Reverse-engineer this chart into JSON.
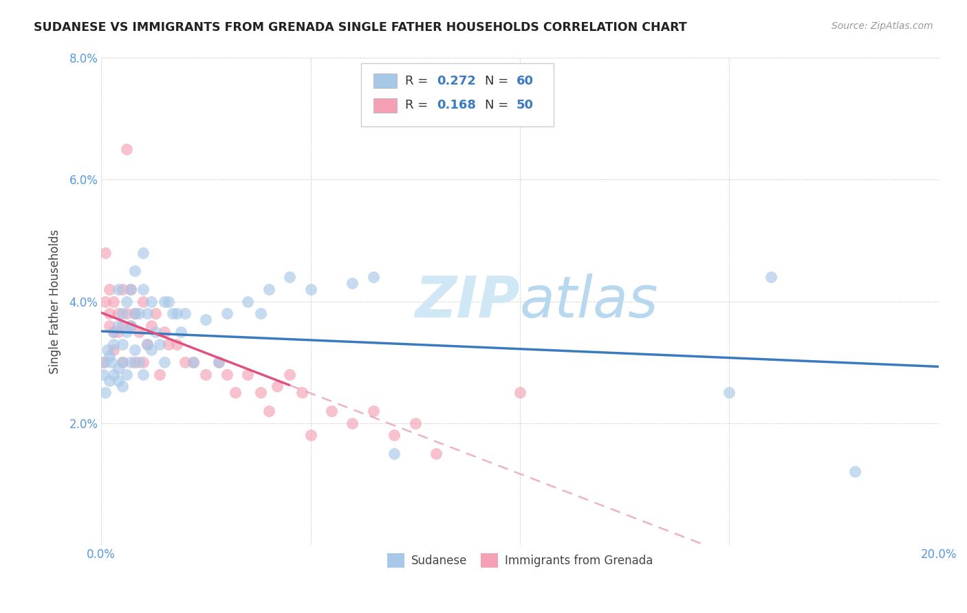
{
  "title": "SUDANESE VS IMMIGRANTS FROM GRENADA SINGLE FATHER HOUSEHOLDS CORRELATION CHART",
  "source": "Source: ZipAtlas.com",
  "ylabel": "Single Father Households",
  "xlim": [
    0,
    0.2
  ],
  "ylim": [
    0,
    0.08
  ],
  "xtick_labels": [
    "0.0%",
    "",
    "",
    "",
    "20.0%"
  ],
  "ytick_labels": [
    "",
    "2.0%",
    "4.0%",
    "6.0%",
    "8.0%"
  ],
  "blue_color": "#a8c8e8",
  "pink_color": "#f4a0b5",
  "blue_line_color": "#3a7abf",
  "pink_line_color": "#e05080",
  "pink_dash_color": "#e8a0b0",
  "watermark_color": "#d0e8f5",
  "sudanese_x": [
    0.0005,
    0.001,
    0.001,
    0.0015,
    0.002,
    0.002,
    0.0025,
    0.003,
    0.003,
    0.003,
    0.004,
    0.004,
    0.004,
    0.004,
    0.005,
    0.005,
    0.005,
    0.005,
    0.006,
    0.006,
    0.006,
    0.007,
    0.007,
    0.007,
    0.008,
    0.008,
    0.008,
    0.009,
    0.009,
    0.01,
    0.01,
    0.01,
    0.011,
    0.011,
    0.012,
    0.012,
    0.013,
    0.014,
    0.015,
    0.015,
    0.016,
    0.017,
    0.018,
    0.019,
    0.02,
    0.022,
    0.025,
    0.028,
    0.03,
    0.035,
    0.038,
    0.04,
    0.045,
    0.05,
    0.06,
    0.065,
    0.07,
    0.15,
    0.16,
    0.18
  ],
  "sudanese_y": [
    0.028,
    0.03,
    0.025,
    0.032,
    0.027,
    0.031,
    0.03,
    0.033,
    0.028,
    0.035,
    0.042,
    0.036,
    0.029,
    0.027,
    0.038,
    0.033,
    0.03,
    0.026,
    0.04,
    0.035,
    0.028,
    0.042,
    0.036,
    0.03,
    0.045,
    0.038,
    0.032,
    0.038,
    0.03,
    0.048,
    0.042,
    0.028,
    0.038,
    0.033,
    0.04,
    0.032,
    0.035,
    0.033,
    0.04,
    0.03,
    0.04,
    0.038,
    0.038,
    0.035,
    0.038,
    0.03,
    0.037,
    0.03,
    0.038,
    0.04,
    0.038,
    0.042,
    0.044,
    0.042,
    0.043,
    0.044,
    0.015,
    0.025,
    0.044,
    0.012
  ],
  "grenada_x": [
    0.0005,
    0.001,
    0.001,
    0.002,
    0.002,
    0.002,
    0.003,
    0.003,
    0.003,
    0.004,
    0.004,
    0.005,
    0.005,
    0.005,
    0.006,
    0.006,
    0.007,
    0.007,
    0.008,
    0.008,
    0.009,
    0.01,
    0.01,
    0.011,
    0.012,
    0.013,
    0.014,
    0.015,
    0.016,
    0.018,
    0.02,
    0.022,
    0.025,
    0.028,
    0.03,
    0.032,
    0.035,
    0.038,
    0.04,
    0.042,
    0.045,
    0.048,
    0.05,
    0.055,
    0.06,
    0.065,
    0.07,
    0.075,
    0.08,
    0.1
  ],
  "grenada_y": [
    0.03,
    0.04,
    0.048,
    0.038,
    0.042,
    0.036,
    0.04,
    0.035,
    0.032,
    0.038,
    0.035,
    0.042,
    0.036,
    0.03,
    0.065,
    0.038,
    0.042,
    0.036,
    0.038,
    0.03,
    0.035,
    0.04,
    0.03,
    0.033,
    0.036,
    0.038,
    0.028,
    0.035,
    0.033,
    0.033,
    0.03,
    0.03,
    0.028,
    0.03,
    0.028,
    0.025,
    0.028,
    0.025,
    0.022,
    0.026,
    0.028,
    0.025,
    0.018,
    0.022,
    0.02,
    0.022,
    0.018,
    0.02,
    0.015,
    0.025
  ]
}
